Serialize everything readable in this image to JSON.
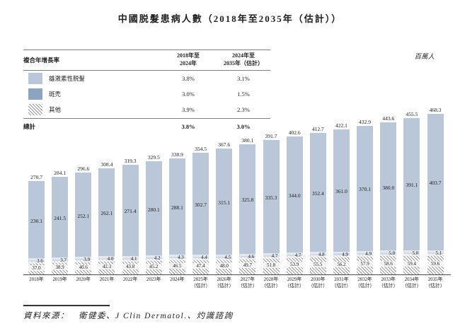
{
  "title": "中國脱髮患病人數（2018年至2035年（估計））",
  "unit_label": "百萬人",
  "cagr_table": {
    "header_label": "複合年增長率",
    "col1": [
      "2018年至",
      "2024年"
    ],
    "col2": [
      "2024年至",
      "2035年（估計）"
    ],
    "rows": [
      {
        "label": "雄激素性脱髮",
        "swatch": "light-blue-swatch",
        "cagr_2018_2024": "3.8%",
        "cagr_2024_2035": "3.1%"
      },
      {
        "label": "斑禿",
        "swatch": "dark-blue-swatch",
        "cagr_2018_2024": "3.0%",
        "cagr_2024_2035": "1.5%"
      },
      {
        "label": "其他",
        "swatch": "diagonal-hatch-swatch",
        "cagr_2018_2024": "3.9%",
        "cagr_2024_2035": "2.3%"
      }
    ],
    "total": {
      "label": "總計",
      "cagr_2018_2024": "3.8%",
      "cagr_2024_2035": "3.0%"
    }
  },
  "chart_data": {
    "type": "bar",
    "stacked": true,
    "title": "中國脱髮患病人數（2018年至2035年（估計））",
    "unit": "百萬人",
    "grid": false,
    "legend_position": "table-top-left",
    "stack_order_bottom_to_top": [
      "其他",
      "斑禿",
      "雄激素性脱髮"
    ],
    "categories": [
      "2018年",
      "2019年",
      "2020年",
      "2021年",
      "2022年",
      "2023年",
      "2024年",
      "2025年（估計）",
      "2026年（估計）",
      "2027年（估計）",
      "2028年（估計）",
      "2029年（估計）",
      "2030年（估計）",
      "2031年（估計）",
      "2032年（估計）",
      "2033年（估計）",
      "2034年（估計）",
      "2035年（估計）"
    ],
    "series": [
      {
        "name": "雄激素性脱髮",
        "color": "#b9c7d8",
        "values": [
          230.1,
          241.5,
          252.1,
          262.1,
          271.4,
          280.1,
          288.1,
          302.7,
          315.1,
          325.8,
          335.3,
          344.0,
          352.4,
          361.0,
          370.1,
          380.0,
          391.1,
          403.7
        ]
      },
      {
        "name": "斑禿",
        "color": "#8da4c0",
        "values": [
          3.6,
          3.7,
          3.9,
          4.0,
          4.1,
          4.2,
          4.3,
          4.4,
          4.5,
          4.6,
          4.7,
          4.7,
          4.8,
          4.9,
          4.9,
          5.0,
          5.0,
          5.1
        ]
      },
      {
        "name": "其他",
        "color": "#9a9a9a",
        "pattern": "diagonal-hatch",
        "values": [
          37.0,
          38.9,
          40.6,
          42.3,
          43.8,
          45.2,
          46.5,
          47.4,
          48.0,
          49.7,
          51.8,
          53.9,
          55.5,
          56.2,
          57.9,
          58.6,
          59.4,
          59.6
        ]
      }
    ],
    "totals": [
      270.7,
      284.1,
      296.6,
      308.4,
      319.3,
      329.5,
      338.9,
      354.5,
      367.6,
      380.1,
      391.7,
      402.6,
      412.7,
      422.1,
      432.9,
      443.6,
      455.5,
      468.3
    ]
  },
  "source": "資料來源：　衛健委、J Clin Dermatol.、灼識諮詢",
  "colors": {
    "androgenetic": "#b9c7d8",
    "areata": "#8da4c0",
    "hatch_line": "#9a9a9a",
    "axis": "#4f4f4f",
    "text": "#1f1f1f"
  }
}
